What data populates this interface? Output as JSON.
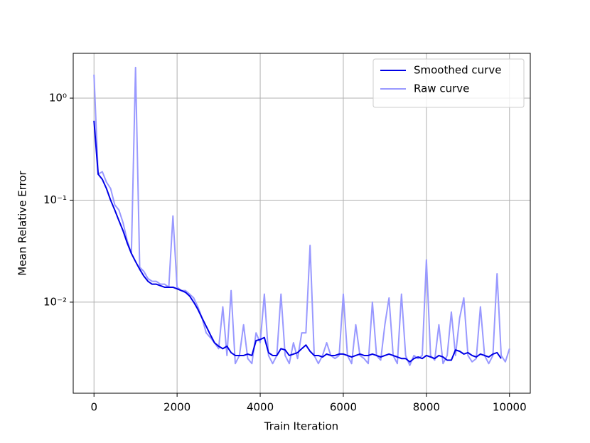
{
  "chart_data": {
    "type": "line",
    "xlabel": "Train Iteration",
    "ylabel": "Mean Relative Error",
    "x": [
      0,
      100,
      200,
      300,
      400,
      500,
      600,
      700,
      800,
      900,
      1000,
      1100,
      1200,
      1300,
      1400,
      1500,
      1600,
      1700,
      1800,
      1900,
      2000,
      2100,
      2200,
      2300,
      2400,
      2500,
      2600,
      2700,
      2800,
      2900,
      3000,
      3100,
      3200,
      3300,
      3400,
      3500,
      3600,
      3700,
      3800,
      3900,
      4000,
      4100,
      4200,
      4300,
      4400,
      4500,
      4600,
      4700,
      4800,
      4900,
      5000,
      5100,
      5200,
      5300,
      5400,
      5500,
      5600,
      5700,
      5800,
      5900,
      6000,
      6100,
      6200,
      6300,
      6400,
      6500,
      6600,
      6700,
      6800,
      6900,
      7000,
      7100,
      7200,
      7300,
      7400,
      7500,
      7600,
      7700,
      7800,
      7900,
      8000,
      8100,
      8200,
      8300,
      8400,
      8500,
      8600,
      8700,
      8800,
      8900,
      9000,
      9100,
      9200,
      9300,
      9400,
      9500,
      9600,
      9700,
      9800,
      9900,
      10000
    ],
    "series": [
      {
        "name": "Raw curve",
        "color": "#9999ff",
        "values": [
          1.7,
          0.18,
          0.19,
          0.15,
          0.13,
          0.09,
          0.08,
          0.06,
          0.04,
          0.03,
          2.0,
          0.022,
          0.02,
          0.017,
          0.016,
          0.016,
          0.015,
          0.015,
          0.014,
          0.07,
          0.014,
          0.013,
          0.013,
          0.012,
          0.011,
          0.009,
          0.007,
          0.005,
          0.0045,
          0.004,
          0.0035,
          0.009,
          0.003,
          0.013,
          0.0025,
          0.003,
          0.006,
          0.0028,
          0.0025,
          0.005,
          0.004,
          0.012,
          0.003,
          0.0025,
          0.003,
          0.012,
          0.003,
          0.0025,
          0.004,
          0.0028,
          0.005,
          0.005,
          0.036,
          0.003,
          0.0025,
          0.003,
          0.004,
          0.003,
          0.0028,
          0.003,
          0.012,
          0.003,
          0.0025,
          0.006,
          0.003,
          0.0028,
          0.0025,
          0.01,
          0.003,
          0.0027,
          0.006,
          0.011,
          0.003,
          0.0025,
          0.012,
          0.003,
          0.0024,
          0.003,
          0.0028,
          0.003,
          0.026,
          0.003,
          0.0027,
          0.006,
          0.0025,
          0.003,
          0.008,
          0.003,
          0.007,
          0.011,
          0.003,
          0.0026,
          0.0028,
          0.009,
          0.003,
          0.0025,
          0.003,
          0.019,
          0.003,
          0.0026,
          0.0035
        ]
      },
      {
        "name": "Smoothed curve",
        "color": "#0000e6",
        "values": [
          0.6,
          0.18,
          0.16,
          0.13,
          0.1,
          0.08,
          0.063,
          0.05,
          0.038,
          0.03,
          0.025,
          0.021,
          0.018,
          0.016,
          0.015,
          0.015,
          0.0145,
          0.014,
          0.014,
          0.014,
          0.0135,
          0.013,
          0.0125,
          0.0115,
          0.01,
          0.0085,
          0.007,
          0.0058,
          0.0048,
          0.004,
          0.0037,
          0.0035,
          0.0037,
          0.0032,
          0.003,
          0.003,
          0.003,
          0.0031,
          0.003,
          0.0042,
          0.0043,
          0.0045,
          0.0032,
          0.003,
          0.003,
          0.0035,
          0.0034,
          0.003,
          0.0031,
          0.0032,
          0.0035,
          0.0038,
          0.0033,
          0.003,
          0.003,
          0.0029,
          0.0031,
          0.003,
          0.003,
          0.0031,
          0.0031,
          0.003,
          0.0029,
          0.003,
          0.0031,
          0.003,
          0.003,
          0.0031,
          0.003,
          0.0029,
          0.003,
          0.0031,
          0.003,
          0.0029,
          0.0028,
          0.0028,
          0.0026,
          0.0028,
          0.0029,
          0.0028,
          0.003,
          0.0029,
          0.0028,
          0.003,
          0.0029,
          0.0027,
          0.0027,
          0.0034,
          0.0033,
          0.0031,
          0.0032,
          0.003,
          0.0029,
          0.0031,
          0.003,
          0.0029,
          0.0031,
          0.0032,
          0.0028,
          null,
          null
        ]
      }
    ],
    "xlim": [
      -500,
      10500
    ],
    "ylim": [
      0.00128,
      2.75
    ],
    "xticks": [
      0,
      2000,
      4000,
      6000,
      8000,
      10000
    ],
    "yticks": [
      {
        "value": 0.01,
        "label": "10⁻²"
      },
      {
        "value": 0.1,
        "label": "10⁻¹"
      },
      {
        "value": 1,
        "label": "10⁰"
      }
    ],
    "log_y": true,
    "grid": true,
    "legend": "upper right",
    "legend_order": [
      1,
      0
    ]
  }
}
